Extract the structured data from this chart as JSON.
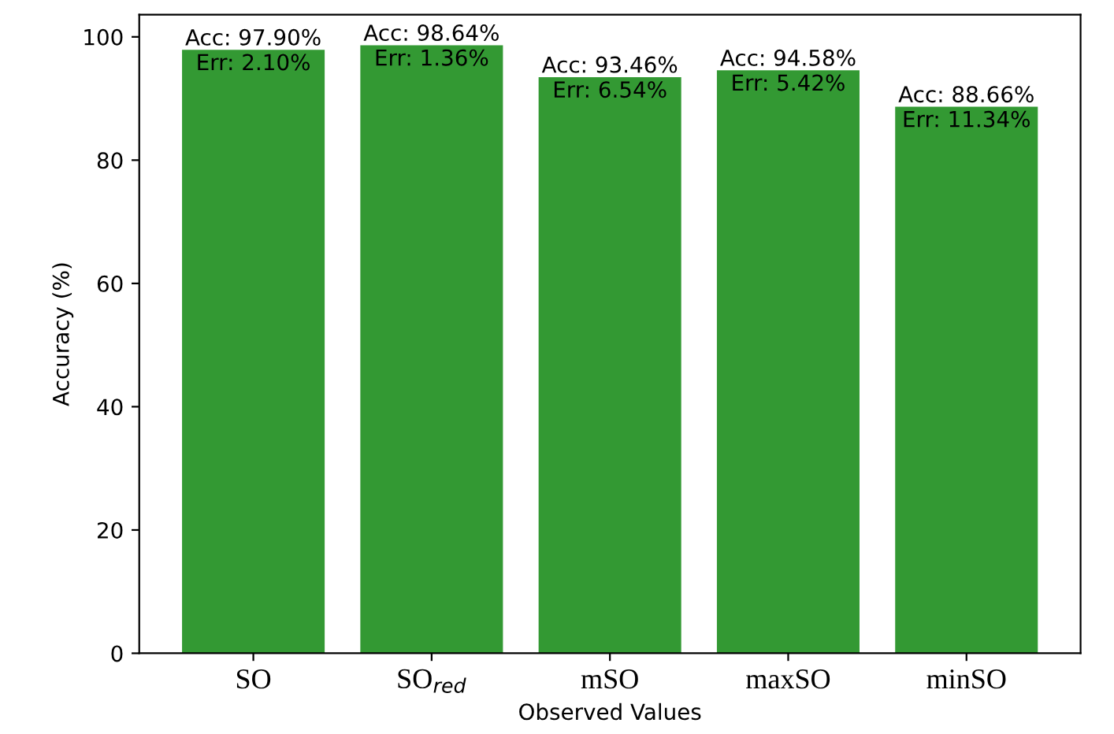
{
  "chart_data": {
    "type": "bar",
    "xlabel": "Observed Values",
    "ylabel": "Accuracy (%)",
    "categories": [
      "SO",
      "SO$_{red}$",
      "mSO",
      "maxSO",
      "minSO"
    ],
    "values": [
      97.9,
      98.64,
      93.46,
      94.58,
      88.66
    ],
    "color": "#339933",
    "value_labels": [
      "Acc: 97.90%",
      "Acc: 98.64%",
      "Acc: 93.46%",
      "Acc: 94.58%",
      "Acc: 88.66%"
    ],
    "annotations": [
      {
        "text": "Err: 2.10%",
        "x": "SO",
        "y": 97.9
      },
      {
        "text": "Err: 1.36%",
        "x": "SO$_{red}$",
        "y": 98.64
      },
      {
        "text": "Err: 6.54%",
        "x": "mSO",
        "y": 93.46
      },
      {
        "text": "Err: 5.42%",
        "x": "maxSO",
        "y": 94.58
      },
      {
        "text": "Err: 11.34%",
        "x": "minSO",
        "y": 88.66
      }
    ],
    "ylim": [
      0,
      103.6
    ],
    "yticks": [
      0,
      20,
      40,
      60,
      80,
      100
    ],
    "grid": false,
    "legend": false
  }
}
